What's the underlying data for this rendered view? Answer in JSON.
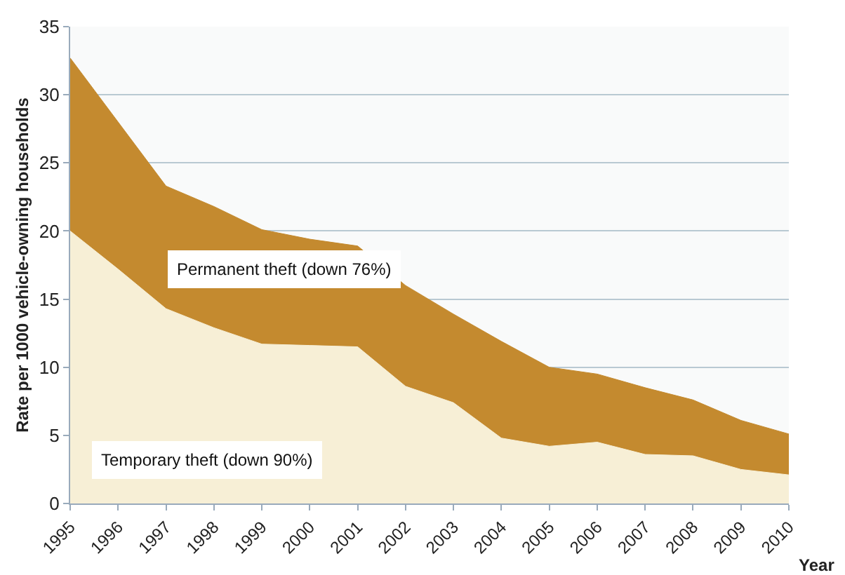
{
  "chart_data": {
    "type": "area",
    "stacked": true,
    "xlabel": "Year",
    "ylabel": "Rate per 1000 vehicle-owning households",
    "categories": [
      "1995",
      "1996",
      "1997",
      "1998",
      "1999",
      "2000",
      "2001",
      "2002",
      "2003",
      "2004",
      "2005",
      "2006",
      "2007",
      "2008",
      "2009",
      "2010"
    ],
    "series": [
      {
        "name": "Temporary theft (down 90%)",
        "color": "#f7efd6",
        "values": [
          20,
          17.2,
          14.3,
          12.9,
          11.7,
          11.6,
          11.5,
          8.6,
          7.4,
          4.8,
          4.2,
          4.5,
          3.6,
          3.5,
          2.5,
          2.1
        ]
      },
      {
        "name": "Permanent theft (down 76%)",
        "color": "#c48a2f",
        "values": [
          12.7,
          10.8,
          9.0,
          8.9,
          8.4,
          7.8,
          7.4,
          7.4,
          6.5,
          7.1,
          5.8,
          5.0,
          4.9,
          4.1,
          3.6,
          3.0
        ]
      }
    ],
    "ylim": [
      0,
      35
    ],
    "yticks": [
      0,
      5,
      10,
      15,
      20,
      25,
      30,
      35
    ],
    "grid": "y",
    "legend": false
  }
}
